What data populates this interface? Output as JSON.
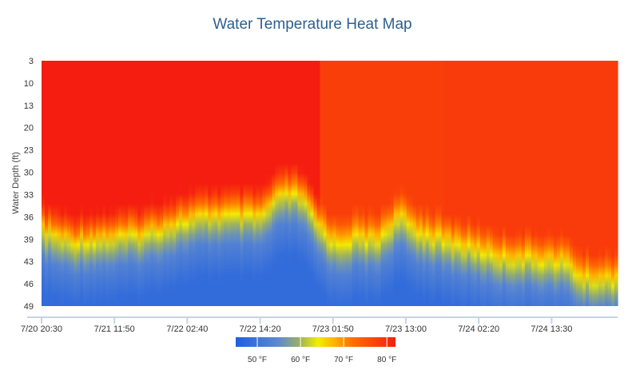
{
  "chart_data": {
    "type": "heatmap",
    "title": "Water Temperature Heat Map",
    "ylabel": "Water Depth (ft)",
    "xlabel": "",
    "y_ticks": [
      "3",
      "10",
      "13",
      "20",
      "23",
      "30",
      "33",
      "36",
      "39",
      "43",
      "46",
      "49"
    ],
    "x_ticks": [
      "7/20 20:30",
      "7/21 11:50",
      "7/22 02:40",
      "7/22 14:20",
      "7/23 01:50",
      "7/23 13:00",
      "7/24 02:20",
      "7/24 13:30"
    ],
    "color_scale": {
      "min": 45,
      "max": 82,
      "stops": [
        {
          "value": 45,
          "color": "#1f5fe0"
        },
        {
          "value": 55,
          "color": "#5f8ad0"
        },
        {
          "value": 60,
          "color": "#9fb35a"
        },
        {
          "value": 64,
          "color": "#f3ee00"
        },
        {
          "value": 68,
          "color": "#ffb000"
        },
        {
          "value": 72,
          "color": "#ff6f00"
        },
        {
          "value": 82,
          "color": "#f51d10"
        }
      ],
      "legend_labels": [
        {
          "value": 50,
          "label": "50 °F"
        },
        {
          "value": 60,
          "label": "60 °F"
        },
        {
          "value": 70,
          "label": "70 °F"
        },
        {
          "value": 80,
          "label": "80 °F"
        }
      ]
    },
    "thermocline_depth_ft": [
      {
        "t": 0,
        "depth": 35.5
      },
      {
        "t": 0.05,
        "depth": 37.5
      },
      {
        "t": 0.12,
        "depth": 36.8
      },
      {
        "t": 0.18,
        "depth": 36.0
      },
      {
        "t": 0.25,
        "depth": 33.5
      },
      {
        "t": 0.3,
        "depth": 32.5
      },
      {
        "t": 0.38,
        "depth": 32.8
      },
      {
        "t": 0.42,
        "depth": 28.5
      },
      {
        "t": 0.45,
        "depth": 29.0
      },
      {
        "t": 0.48,
        "depth": 34.5
      },
      {
        "t": 0.51,
        "depth": 38.0
      },
      {
        "t": 0.55,
        "depth": 36.8
      },
      {
        "t": 0.58,
        "depth": 37.5
      },
      {
        "t": 0.62,
        "depth": 33.0
      },
      {
        "t": 0.65,
        "depth": 35.5
      },
      {
        "t": 0.7,
        "depth": 37.5
      },
      {
        "t": 0.74,
        "depth": 38.5
      },
      {
        "t": 0.8,
        "depth": 40.5
      },
      {
        "t": 0.86,
        "depth": 40.8
      },
      {
        "t": 0.91,
        "depth": 41.5
      },
      {
        "t": 0.94,
        "depth": 44.5
      },
      {
        "t": 1.0,
        "depth": 44.6
      }
    ],
    "surface_temp_f": {
      "before_7_23": 82,
      "after_7_23": 78
    },
    "bottom_temp_f": 48
  }
}
